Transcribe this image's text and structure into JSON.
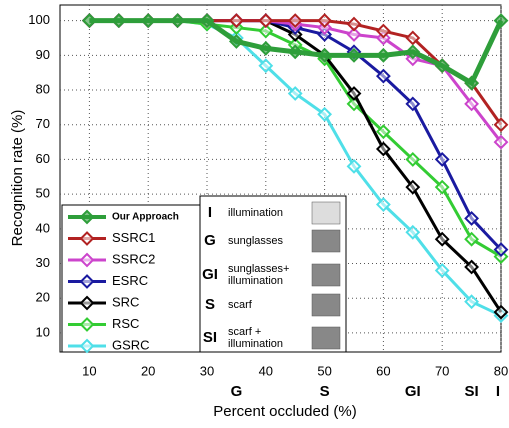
{
  "chart_data": {
    "type": "line",
    "x_label": "Percent occluded (%)",
    "y_label": "Recognition rate (%)",
    "xlim": [
      5,
      80
    ],
    "ylim": [
      4.5,
      104.5
    ],
    "xticks": [
      10,
      20,
      30,
      40,
      50,
      60,
      70,
      80
    ],
    "yticks": [
      10,
      20,
      30,
      40,
      50,
      60,
      70,
      80,
      90,
      100
    ],
    "grid": true,
    "x": [
      10,
      15,
      20,
      25,
      30,
      35,
      40,
      45,
      50,
      55,
      60,
      65,
      70,
      75,
      80
    ],
    "series": [
      {
        "name": "Our Approach",
        "color": "#2e9e3a",
        "values": [
          100,
          100,
          100,
          100,
          100,
          94,
          92,
          91,
          90,
          90,
          90,
          91,
          87,
          82,
          100
        ]
      },
      {
        "name": "SSRC1",
        "color": "#b22222",
        "values": [
          100,
          100,
          100,
          100,
          100,
          100,
          100,
          100,
          100,
          99,
          97,
          95,
          87,
          82,
          70
        ]
      },
      {
        "name": "SSRC2",
        "color": "#cc44cc",
        "values": [
          100,
          100,
          100,
          100,
          100,
          100,
          100,
          99,
          98,
          96,
          95,
          89,
          87,
          76,
          65
        ]
      },
      {
        "name": "ESRC",
        "color": "#1a1aa0",
        "values": [
          100,
          100,
          100,
          100,
          100,
          100,
          100,
          98,
          96,
          91,
          84,
          76,
          60,
          43,
          34
        ]
      },
      {
        "name": "SRC",
        "color": "#000000",
        "values": [
          100,
          100,
          100,
          100,
          100,
          100,
          100,
          96,
          90,
          79,
          63,
          52,
          37,
          29,
          16
        ]
      },
      {
        "name": "RSC",
        "color": "#33cc33",
        "values": [
          100,
          100,
          100,
          100,
          99,
          98,
          97,
          93,
          89,
          76,
          68,
          60,
          52,
          37,
          32
        ]
      },
      {
        "name": "GSRC",
        "color": "#4fdfe8",
        "values": [
          100,
          100,
          100,
          100,
          99,
          95,
          87,
          79,
          73,
          58,
          47,
          39,
          28,
          19,
          15
        ]
      }
    ],
    "occlusion_markers": [
      {
        "x": 35,
        "label": "G",
        "color": "#c87533"
      },
      {
        "x": 50,
        "label": "S",
        "color": "#c87533"
      },
      {
        "x": 65,
        "label": "GI",
        "color": "#2e9e3a"
      },
      {
        "x": 75,
        "label": "SI",
        "color": "#3a3a9a"
      },
      {
        "x": 80,
        "label": "I",
        "color": "#b22222"
      }
    ],
    "occlusion_types": [
      {
        "code": "I",
        "color": "#b22222",
        "description": [
          "illumination"
        ]
      },
      {
        "code": "G",
        "color": "#c87533",
        "description": [
          "sunglasses"
        ]
      },
      {
        "code": "GI",
        "color": "#2e9e3a",
        "description": [
          "sunglasses+",
          "illumination"
        ]
      },
      {
        "code": "S",
        "color": "#c87533",
        "description": [
          "scarf"
        ]
      },
      {
        "code": "SI",
        "color": "#3a3a9a",
        "description": [
          "scarf +",
          "illumination"
        ]
      }
    ]
  }
}
